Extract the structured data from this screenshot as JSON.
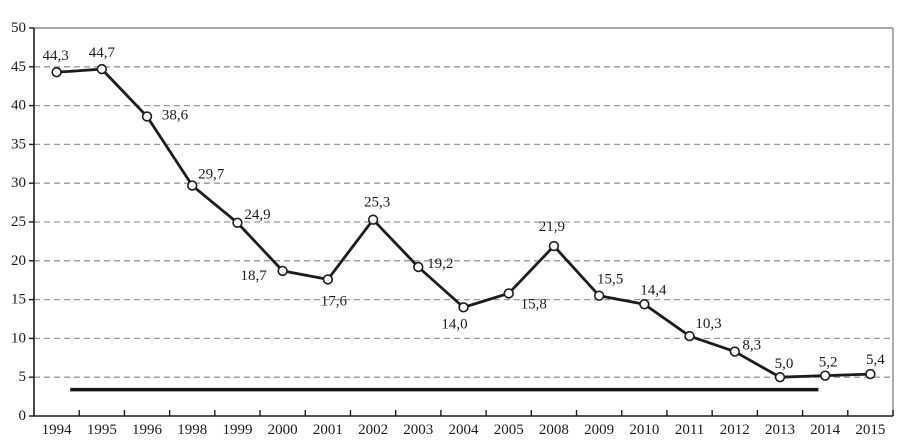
{
  "chart_data": {
    "type": "line",
    "title": "",
    "xlabel": "",
    "ylabel": "",
    "legend": "none",
    "decimal_separator": ",",
    "categories": [
      "1994",
      "1995",
      "1996",
      "1998",
      "1999",
      "2000",
      "2001",
      "2002",
      "2003",
      "2004",
      "2005",
      "2008",
      "2009",
      "2010",
      "2011",
      "2012",
      "2013",
      "2014",
      "2015"
    ],
    "series": [
      {
        "name": "main-series",
        "values": [
          44.3,
          44.7,
          38.6,
          29.7,
          24.9,
          18.7,
          17.6,
          25.3,
          19.2,
          14.0,
          15.8,
          21.9,
          15.5,
          14.4,
          10.3,
          8.3,
          5.0,
          5.2,
          5.4
        ],
        "point_labels": [
          "44,3",
          "44,7",
          "38,6",
          "29,7",
          "24,9",
          "18,7",
          "17,6",
          "25,3",
          "19,2",
          "14,0",
          "15,8",
          "21,9",
          "15,5",
          "14,4",
          "10,3",
          "8,3",
          "5,0",
          "5,2",
          "5,4"
        ],
        "label_offsets": [
          [
            -1,
            -16
          ],
          [
            0,
            -16
          ],
          [
            28,
            -1
          ],
          [
            19,
            -11
          ],
          [
            20,
            -8
          ],
          [
            -29,
            5
          ],
          [
            6,
            22
          ],
          [
            4,
            -17
          ],
          [
            22,
            -3
          ],
          [
            -9,
            17
          ],
          [
            25,
            11
          ],
          [
            -2,
            -19
          ],
          [
            11,
            -16
          ],
          [
            9,
            -14
          ],
          [
            19,
            -12
          ],
          [
            17,
            -6
          ],
          [
            4,
            -13
          ],
          [
            3,
            -13
          ],
          [
            5,
            -14
          ]
        ]
      }
    ],
    "reference_line": {
      "value": 3.4,
      "x_start_index": 0.3,
      "x_end_index": 16.85
    },
    "ylim": [
      0,
      50
    ],
    "yticks": [
      0,
      5,
      10,
      15,
      20,
      25,
      30,
      35,
      40,
      45,
      50
    ],
    "ytick_labels": [
      "0",
      "5",
      "10",
      "15",
      "20",
      "25",
      "30",
      "35",
      "40",
      "45",
      "50"
    ],
    "grid": {
      "horizontal": true,
      "style": "dashed"
    },
    "colors": {
      "series": "#1c1c1c",
      "marker_fill": "#ffffff",
      "marker_stroke": "#1c1c1c",
      "grid": "#9a9a9a",
      "border": "#8c8c8c",
      "axis": "#1c1c1c",
      "text": "#1c1c1c",
      "reference": "#151515",
      "background": "#ffffff"
    }
  }
}
